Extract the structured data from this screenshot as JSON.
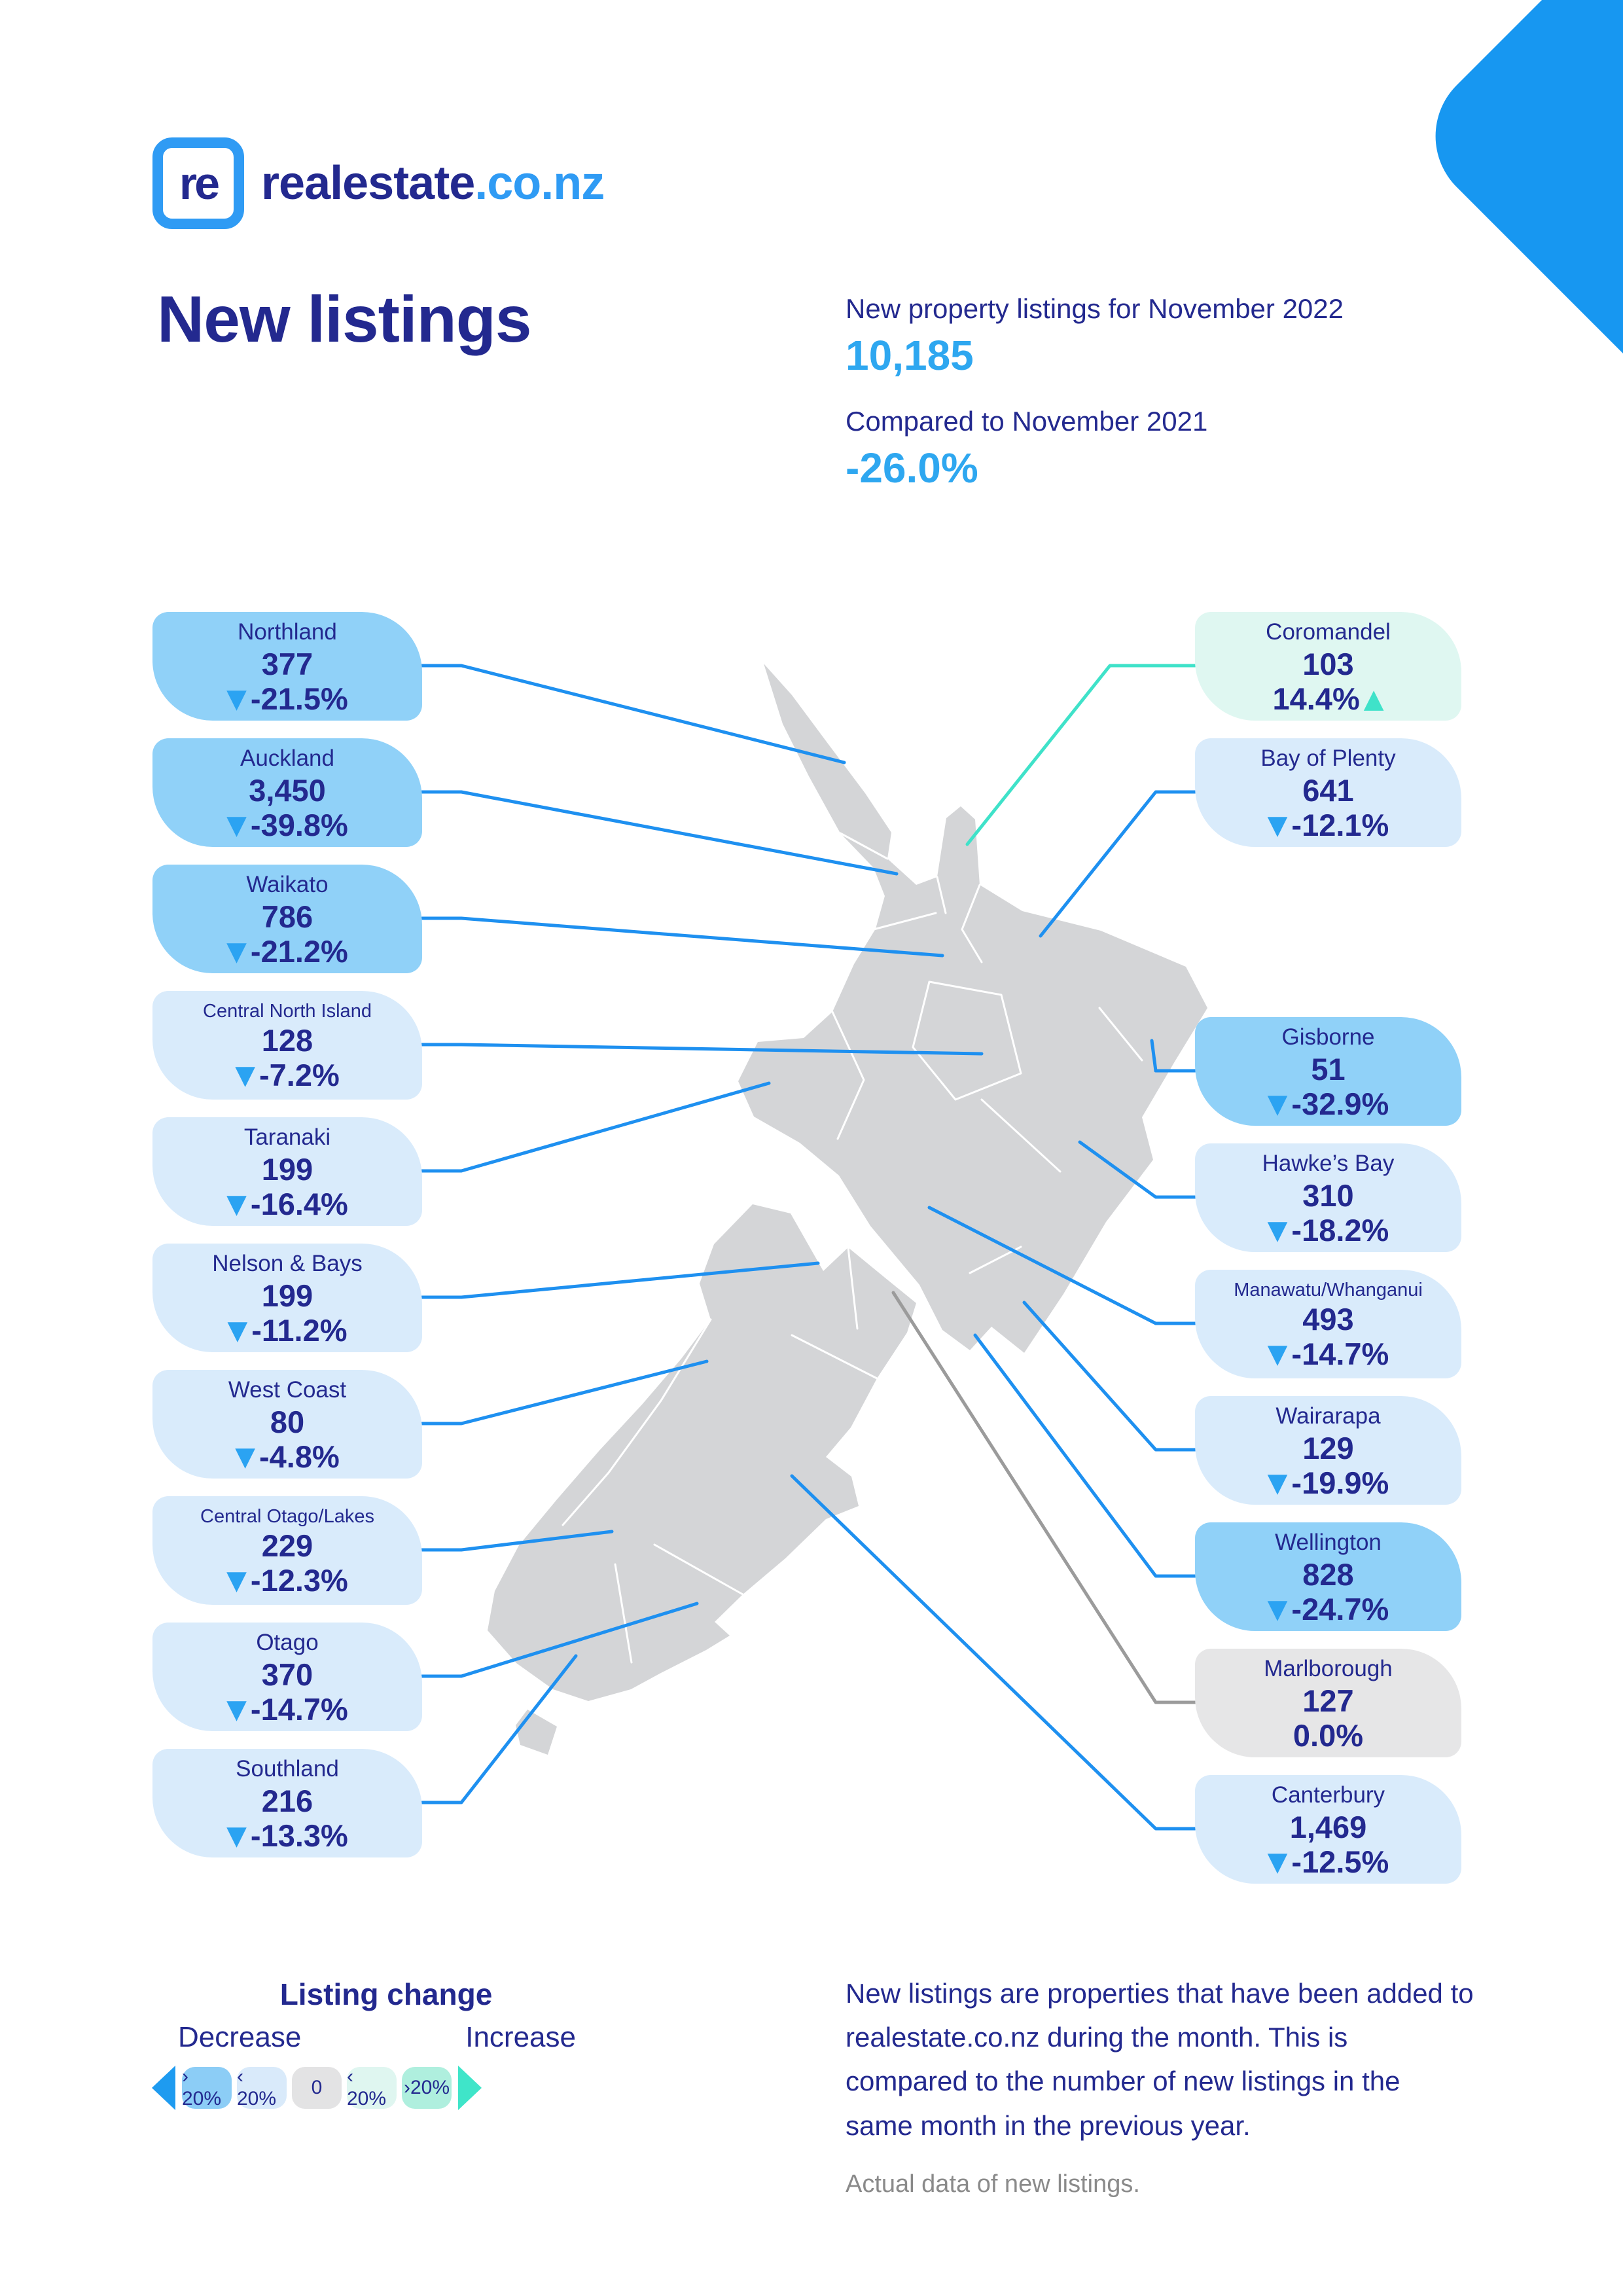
{
  "logo": {
    "mark": "re",
    "brand": "realestate",
    "suffix": ".co.nz"
  },
  "title": "New listings",
  "header": {
    "line1": "New property listings for November 2022",
    "value1": "10,185",
    "line2": "Compared to November 2021",
    "value2": "-26.0%"
  },
  "regions": [
    {
      "name": "Northland",
      "value": "377",
      "change": "-21.5%",
      "direction": "down",
      "tone": "dark"
    },
    {
      "name": "Auckland",
      "value": "3,450",
      "change": "-39.8%",
      "direction": "down",
      "tone": "dark"
    },
    {
      "name": "Waikato",
      "value": "786",
      "change": "-21.2%",
      "direction": "down",
      "tone": "dark"
    },
    {
      "name": "Central North Island",
      "value": "128",
      "change": "-7.2%",
      "direction": "down",
      "tone": "light"
    },
    {
      "name": "Taranaki",
      "value": "199",
      "change": "-16.4%",
      "direction": "down",
      "tone": "light"
    },
    {
      "name": "Nelson & Bays",
      "value": "199",
      "change": "-11.2%",
      "direction": "down",
      "tone": "light"
    },
    {
      "name": "West Coast",
      "value": "80",
      "change": "-4.8%",
      "direction": "down",
      "tone": "light"
    },
    {
      "name": "Central Otago/Lakes",
      "value": "229",
      "change": "-12.3%",
      "direction": "down",
      "tone": "light"
    },
    {
      "name": "Otago",
      "value": "370",
      "change": "-14.7%",
      "direction": "down",
      "tone": "light"
    },
    {
      "name": "Southland",
      "value": "216",
      "change": "-13.3%",
      "direction": "down",
      "tone": "light"
    },
    {
      "name": "Coromandel",
      "value": "103",
      "change": "14.4%",
      "direction": "up",
      "tone": "mint"
    },
    {
      "name": "Bay of Plenty",
      "value": "641",
      "change": "-12.1%",
      "direction": "down",
      "tone": "light"
    },
    {
      "name": "Gisborne",
      "value": "51",
      "change": "-32.9%",
      "direction": "down",
      "tone": "dark"
    },
    {
      "name": "Hawke’s Bay",
      "value": "310",
      "change": "-18.2%",
      "direction": "down",
      "tone": "light"
    },
    {
      "name": "Manawatu/Whanganui",
      "value": "493",
      "change": "-14.7%",
      "direction": "down",
      "tone": "light"
    },
    {
      "name": "Wairarapa",
      "value": "129",
      "change": "-19.9%",
      "direction": "down",
      "tone": "light"
    },
    {
      "name": "Wellington",
      "value": "828",
      "change": "-24.7%",
      "direction": "down",
      "tone": "dark"
    },
    {
      "name": "Marlborough",
      "value": "127",
      "change": "0.0%",
      "direction": "flat",
      "tone": "gray"
    },
    {
      "name": "Canterbury",
      "value": "1,469",
      "change": "-12.5%",
      "direction": "down",
      "tone": "light"
    }
  ],
  "legend": {
    "title": "Listing change",
    "decrease": "Decrease",
    "increase": "Increase",
    "pills": [
      "› 20%",
      "‹ 20%",
      "0",
      "‹ 20%",
      "›20%"
    ]
  },
  "footnote": {
    "text": "New listings are properties that have been added to realestate.co.nz during the month. This is compared to the number of new listings in the same month in the previous year.",
    "note": "Actual data of new listings."
  },
  "colors": {
    "navy": "#23298F",
    "accent_blue": "#2EA7F0",
    "card_over20_decrease": "#90D1F8",
    "card_under20_decrease": "#D9EBFB",
    "card_increase": "#DFF7F1",
    "card_zero": "#E6E6E7",
    "teal": "#3FE2C9",
    "corner_blue": "#1797F1",
    "map_gray": "#D4D5D7"
  }
}
